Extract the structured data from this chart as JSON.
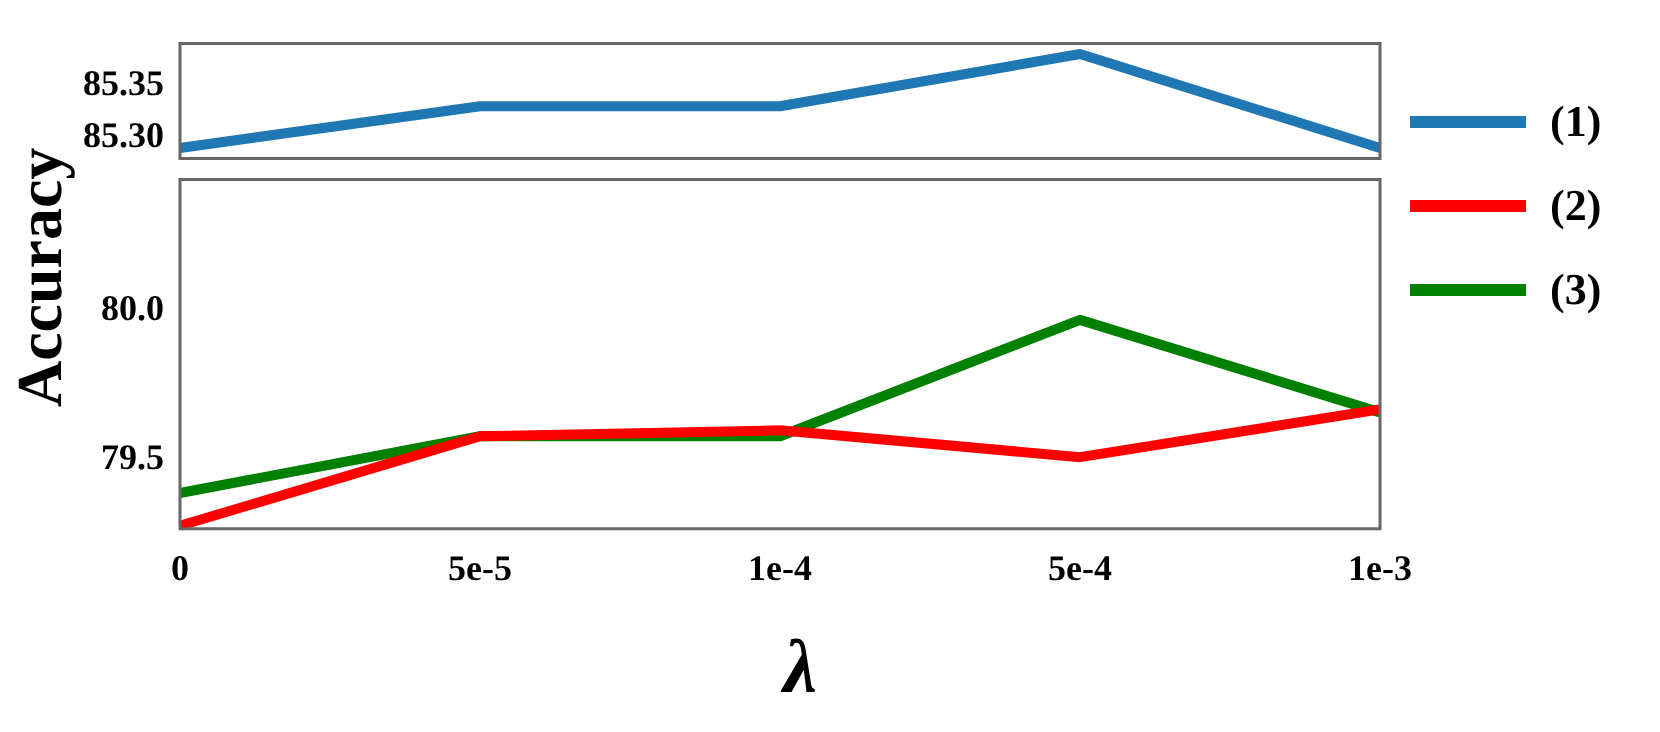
{
  "chart_data": [
    {
      "type": "line",
      "categories": [
        "0",
        "5e-5",
        "1e-4",
        "5e-4",
        "1e-3"
      ],
      "ylim": [
        85.28,
        85.39
      ],
      "yticks": [
        {
          "value": 85.3,
          "label": "85.30"
        },
        {
          "value": 85.35,
          "label": "85.35"
        }
      ],
      "tick_labels": "y",
      "grid": false,
      "legend": "right",
      "marker": "none",
      "line_style": "solid",
      "series": [
        {
          "name": "(1)",
          "color": "#1f77b4",
          "values": [
            85.29,
            85.33,
            85.33,
            85.38,
            85.29
          ]
        }
      ]
    },
    {
      "type": "line",
      "categories": [
        "0",
        "5e-5",
        "1e-4",
        "5e-4",
        "1e-3"
      ],
      "xlabel": "λ",
      "ylabel": "Accuracy",
      "ylim": [
        79.27,
        80.44
      ],
      "yticks": [
        {
          "value": 79.5,
          "label": "79.5"
        },
        {
          "value": 80.0,
          "label": "80.0"
        }
      ],
      "grid": false,
      "legend": "right",
      "marker": "none",
      "line_style": "solid",
      "series": [
        {
          "name": "(2)",
          "color": "#ff0000",
          "values": [
            79.28,
            79.58,
            79.6,
            79.51,
            79.67
          ]
        },
        {
          "name": "(3)",
          "color": "#008000",
          "values": [
            79.39,
            79.58,
            79.58,
            79.97,
            79.66
          ]
        }
      ]
    }
  ]
}
